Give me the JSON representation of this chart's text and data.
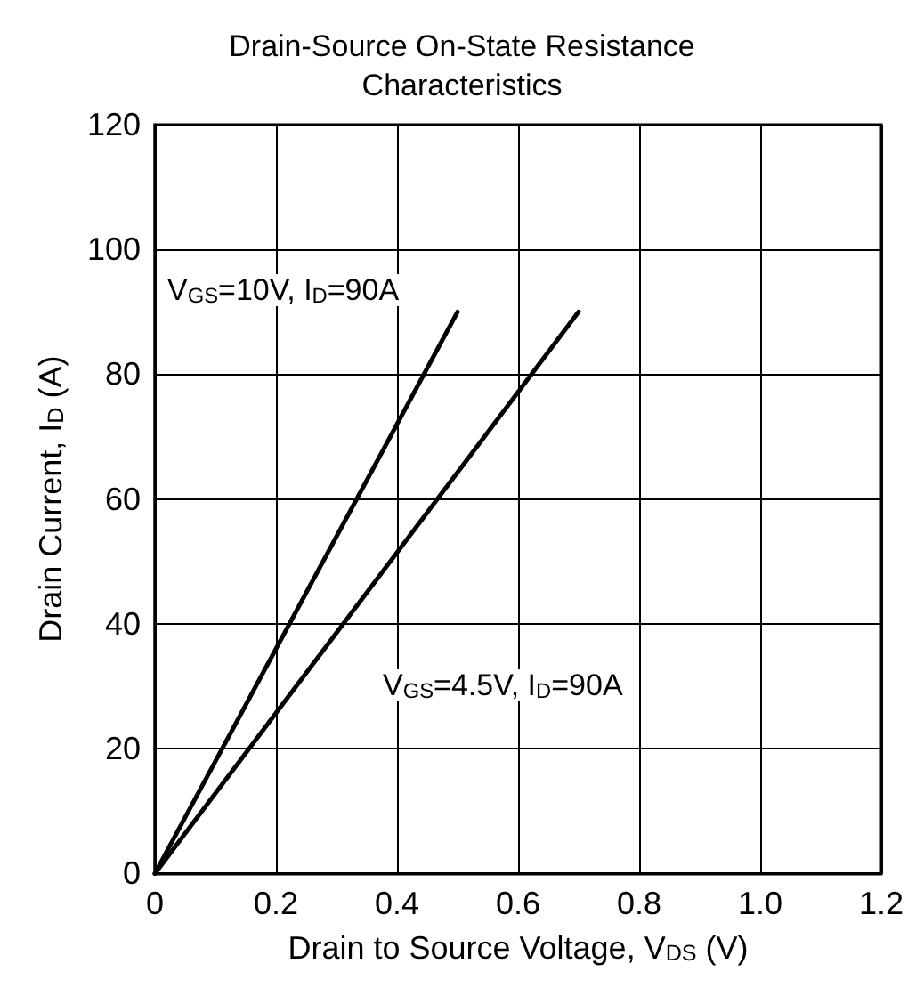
{
  "chart_data": {
    "type": "line",
    "title": "Drain-Source On-State Resistance\nCharacteristics",
    "xlabel": "Drain to Source Voltage, V$_{DS}$ (V)",
    "ylabel": "Drain Current, I$_{D}$ (A)",
    "series": [
      {
        "color": "#000000",
        "x": [
          0,
          0.5
        ],
        "values": [
          0,
          90
        ]
      },
      {
        "color": "#000000",
        "x": [
          0,
          0.7
        ],
        "values": [
          0,
          90
        ]
      }
    ],
    "xlim": [
      0,
      1.2
    ],
    "xticks": [
      0,
      0.2,
      0.4,
      0.6,
      0.8,
      {
        "value": 1,
        "label": "1.0"
      },
      1.2
    ],
    "ylim": [
      0,
      120
    ],
    "yticks": [
      0,
      20,
      40,
      60,
      80,
      100,
      120
    ],
    "grid": true,
    "marker": "none",
    "line_style": "solid",
    "annotations": [
      "V$_{GS}$=10V, I$_{D}$=90A",
      "V$_{GS}$=4.5V, I$_{D}$=90A"
    ]
  }
}
